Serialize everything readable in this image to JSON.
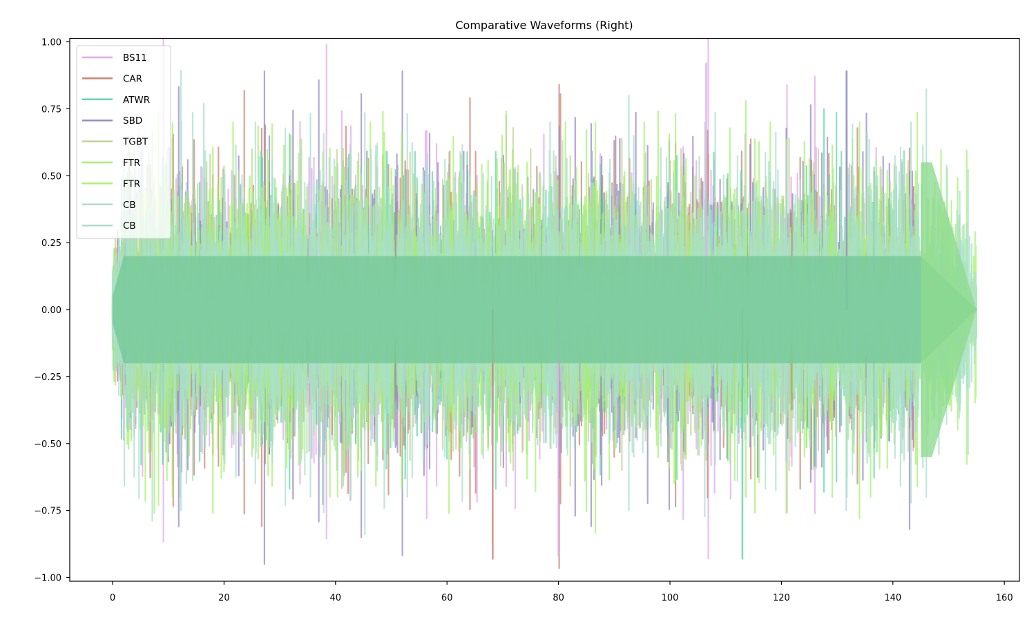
{
  "chart_data": {
    "type": "line",
    "title": "Comparative Waveforms (Right)",
    "xlabel": "",
    "ylabel": "",
    "xlim": [
      -7.8,
      162.8
    ],
    "ylim": [
      -1.02,
      1.0
    ],
    "xticks": [
      0,
      20,
      40,
      60,
      80,
      100,
      120,
      140,
      160
    ],
    "xtick_labels": [
      "0",
      "20",
      "40",
      "60",
      "80",
      "100",
      "120",
      "140",
      "160"
    ],
    "yticks": [
      1.0,
      0.75,
      0.5,
      0.25,
      0.0,
      -0.25,
      -0.5,
      -0.75,
      -1.0
    ],
    "ytick_labels": [
      "1.00",
      "0.75",
      "0.50",
      "0.25",
      "0.00",
      "−0.25",
      "−0.50",
      "−0.75",
      "−1.00"
    ],
    "grid": false,
    "legend_position": "upper left",
    "description": "Overlaid audio waveforms (right channel) of nine tracks plotted against time in seconds; dense oscillations centered on 0 with amplitudes mostly within ±0.5 and peaks reaching about ±0.9.",
    "series": [
      {
        "name": "BS11",
        "color": "#e2a9ec",
        "x_start": 0,
        "x_end": 144.5,
        "max": 0.92,
        "min": -0.93,
        "typical_amplitude": 0.45
      },
      {
        "name": "CAR",
        "color": "#cb8572",
        "x_start": 0,
        "x_end": 145.5,
        "max": 0.84,
        "min": -0.93,
        "typical_amplitude": 0.45
      },
      {
        "name": "ATWR",
        "color": "#5fd8a5",
        "x_start": 0,
        "x_end": 145.0,
        "max": 0.59,
        "min": -0.93,
        "typical_amplitude": 0.4
      },
      {
        "name": "SBD",
        "color": "#978ac6",
        "x_start": 0,
        "x_end": 145.0,
        "max": 0.89,
        "min": -0.82,
        "typical_amplitude": 0.45
      },
      {
        "name": "TGBT",
        "color": "#bfd492",
        "x_start": 0,
        "x_end": 151.0,
        "max": 0.6,
        "min": -0.6,
        "typical_amplitude": 0.4
      },
      {
        "name": "FTR",
        "color": "#a7f26f",
        "x_start": 0,
        "x_end": 155.0,
        "max": 0.74,
        "min": -0.76,
        "typical_amplitude": 0.45
      },
      {
        "name": "FTR",
        "color": "#a7f26f",
        "x_start": 0,
        "x_end": 152.0,
        "max": 0.7,
        "min": -0.7,
        "typical_amplitude": 0.45
      },
      {
        "name": "CB",
        "color": "#aadfcc",
        "x_start": 0,
        "x_end": 155.0,
        "max": 0.77,
        "min": -0.75,
        "typical_amplitude": 0.45
      },
      {
        "name": "CB",
        "color": "#aadfcc",
        "x_start": 0,
        "x_end": 153.0,
        "max": 0.7,
        "min": -0.7,
        "typical_amplitude": 0.45
      }
    ],
    "notable_peaks": [
      {
        "series": "BS11",
        "x": 106.5,
        "y": 0.92
      },
      {
        "series": "SBD",
        "x": 131.7,
        "y": 0.89
      },
      {
        "series": "CAR",
        "x": 68.2,
        "y": -0.93
      },
      {
        "series": "ATWR",
        "x": 113.0,
        "y": -0.93
      },
      {
        "series": "BS11",
        "x": 80.0,
        "y": -0.92
      }
    ]
  },
  "legend": {
    "items": [
      {
        "label": "BS11",
        "color": "#e2a9ec"
      },
      {
        "label": "CAR",
        "color": "#cb8572"
      },
      {
        "label": "ATWR",
        "color": "#5fd8a5"
      },
      {
        "label": "SBD",
        "color": "#978ac6"
      },
      {
        "label": "TGBT",
        "color": "#bfd492"
      },
      {
        "label": "FTR",
        "color": "#a7f26f"
      },
      {
        "label": "FTR",
        "color": "#a7f26f"
      },
      {
        "label": "CB",
        "color": "#aadfcc"
      },
      {
        "label": "CB",
        "color": "#aadfcc"
      }
    ]
  },
  "colors": {
    "center_band": "#78c99a",
    "axis": "#000000"
  }
}
